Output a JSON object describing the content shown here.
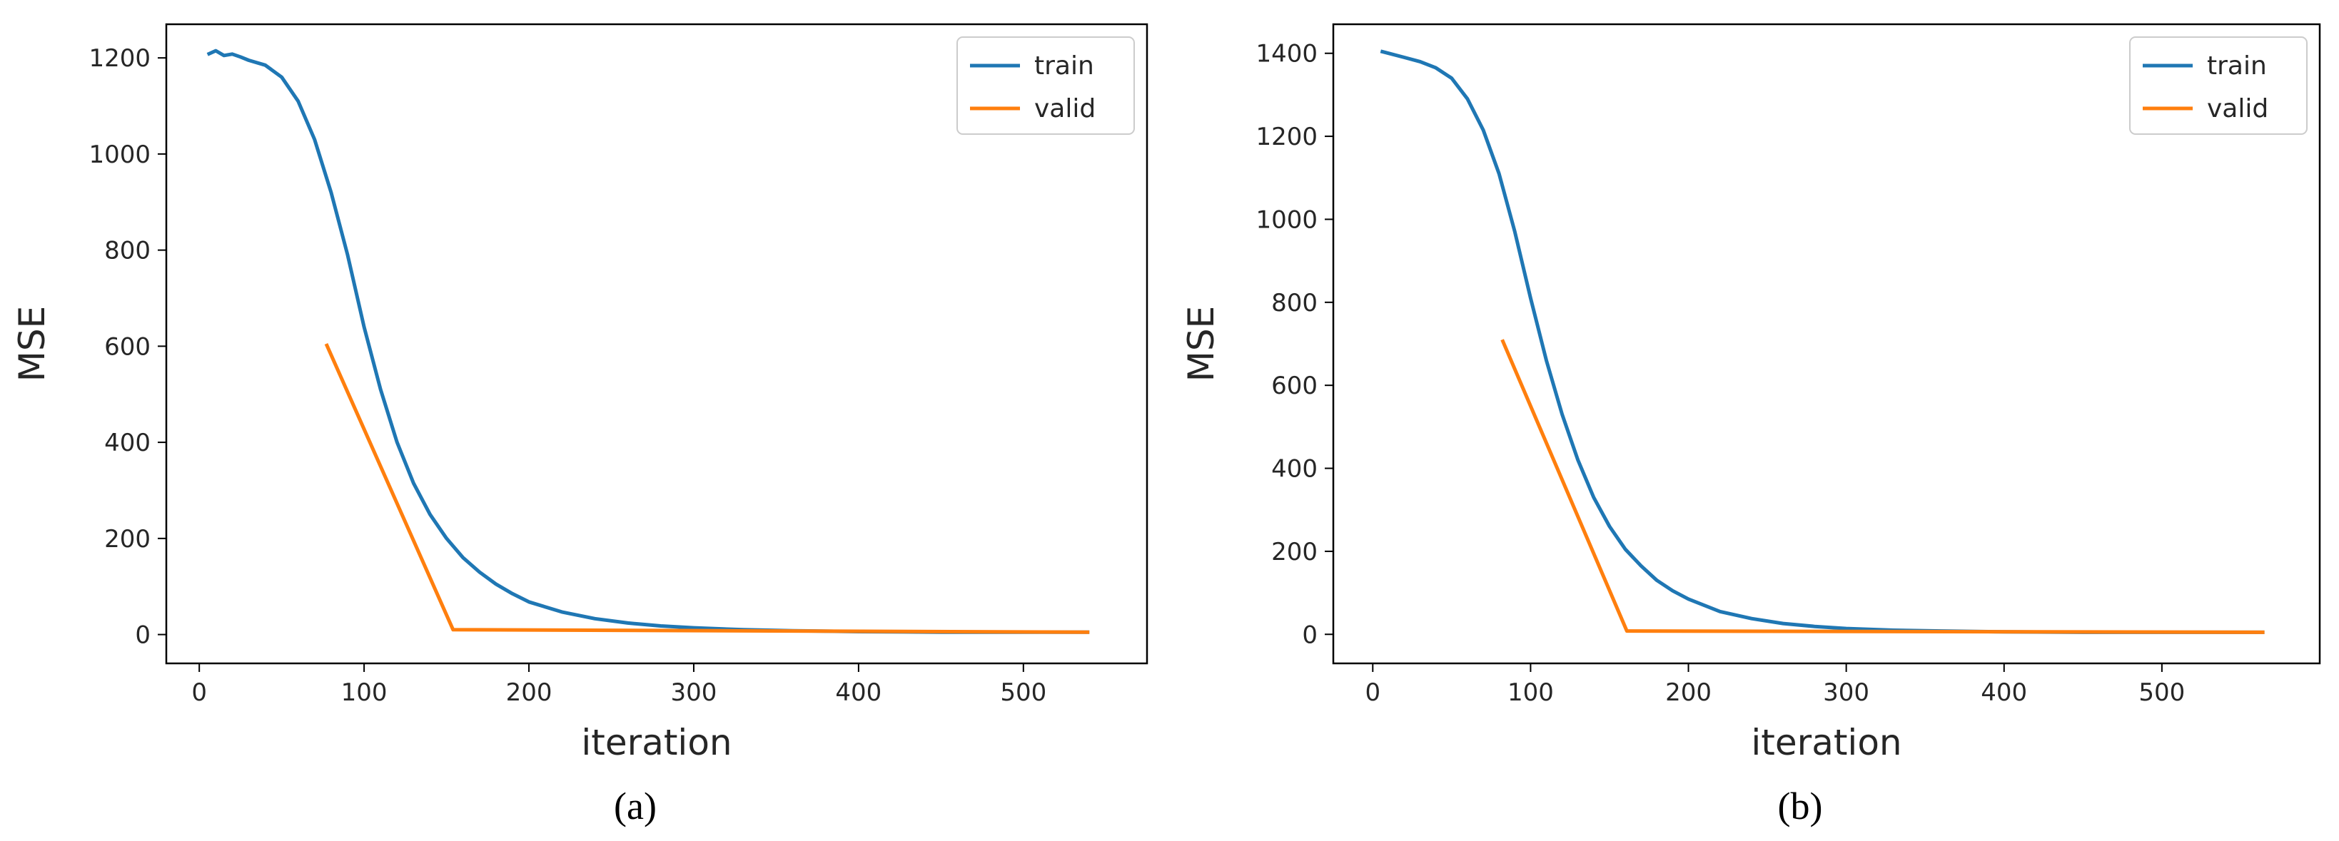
{
  "chart_data": [
    {
      "type": "line",
      "caption": "(a)",
      "xlabel": "iteration",
      "ylabel": "MSE",
      "xlim": [
        -20,
        575
      ],
      "ylim": [
        -60,
        1270
      ],
      "xticks": [
        0,
        100,
        200,
        300,
        400,
        500
      ],
      "yticks": [
        0,
        200,
        400,
        600,
        800,
        1000,
        1200
      ],
      "legend_position": "top-right",
      "series": [
        {
          "name": "train",
          "color": "#1f77b4",
          "x": [
            5,
            10,
            15,
            20,
            25,
            30,
            40,
            50,
            60,
            70,
            80,
            90,
            100,
            110,
            120,
            130,
            140,
            150,
            160,
            170,
            180,
            190,
            200,
            220,
            240,
            260,
            280,
            300,
            330,
            360,
            400,
            450,
            500,
            540
          ],
          "y": [
            1207,
            1215,
            1205,
            1208,
            1202,
            1195,
            1185,
            1160,
            1110,
            1030,
            920,
            790,
            640,
            510,
            400,
            315,
            250,
            200,
            160,
            130,
            105,
            85,
            68,
            47,
            33,
            24,
            18,
            14,
            10,
            8,
            6,
            5,
            5,
            5
          ]
        },
        {
          "name": "valid",
          "color": "#ff7f0e",
          "x": [
            77,
            154,
            540
          ],
          "y": [
            605,
            10,
            5
          ]
        }
      ]
    },
    {
      "type": "line",
      "caption": "(b)",
      "xlabel": "iteration",
      "ylabel": "MSE",
      "xlim": [
        -25,
        600
      ],
      "ylim": [
        -70,
        1470
      ],
      "xticks": [
        0,
        100,
        200,
        300,
        400,
        500
      ],
      "yticks": [
        0,
        200,
        400,
        600,
        800,
        1000,
        1200,
        1400
      ],
      "legend_position": "top-right",
      "series": [
        {
          "name": "train",
          "color": "#1f77b4",
          "x": [
            5,
            10,
            20,
            30,
            40,
            50,
            60,
            70,
            80,
            90,
            100,
            110,
            120,
            130,
            140,
            150,
            160,
            170,
            180,
            190,
            200,
            220,
            240,
            260,
            280,
            300,
            330,
            360,
            400,
            450,
            500,
            565
          ],
          "y": [
            1405,
            1400,
            1390,
            1380,
            1365,
            1340,
            1290,
            1215,
            1110,
            970,
            810,
            660,
            530,
            420,
            330,
            260,
            205,
            165,
            130,
            105,
            85,
            55,
            38,
            26,
            19,
            14,
            10,
            8,
            6,
            5,
            5,
            5
          ]
        },
        {
          "name": "valid",
          "color": "#ff7f0e",
          "x": [
            82,
            161,
            565
          ],
          "y": [
            710,
            8,
            5
          ]
        }
      ]
    }
  ]
}
